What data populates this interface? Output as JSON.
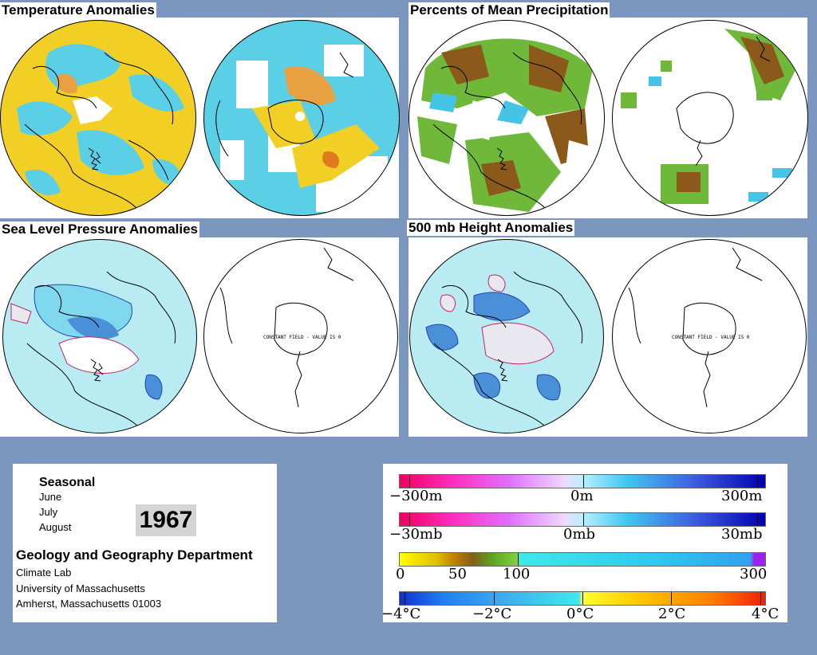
{
  "panels": {
    "temperature": {
      "title": "Temperature Anomalies"
    },
    "precipitation": {
      "title": "Percents of Mean Precipitation"
    },
    "sea_level": {
      "title": "Sea Level Pressure Anomalies",
      "south_note": "CONSTANT FIELD - VALUE IS 0"
    },
    "height500": {
      "title": "500 mb Height Anomalies",
      "south_note": "CONSTANT FIELD - VALUE IS 0"
    }
  },
  "info": {
    "period": "Seasonal",
    "months": [
      "June",
      "July",
      "August"
    ],
    "year": "1967",
    "department": "Geology and Geography Department",
    "address_lines": [
      "Climate Lab",
      "University of Massachusetts",
      "Amherst, Massachusetts 01003"
    ]
  },
  "legends": {
    "height": {
      "labels": [
        "−300m",
        "0m",
        "300m"
      ]
    },
    "pressure": {
      "labels": [
        "−30mb",
        "0mb",
        "30mb"
      ]
    },
    "precip": {
      "labels": [
        "0",
        "50",
        "100",
        "300"
      ]
    },
    "temp": {
      "labels": [
        "−4°C",
        "−2°C",
        "0°C",
        "2°C",
        "4°C"
      ]
    }
  },
  "colors": {
    "background": "#7b96bf",
    "warm": "#f5d21e",
    "cool": "#56cfe8",
    "dry": "#8b5a1a",
    "wet": "#44c4e6",
    "positive_contour": "#c8226e",
    "negative_contour": "#2244aa"
  }
}
